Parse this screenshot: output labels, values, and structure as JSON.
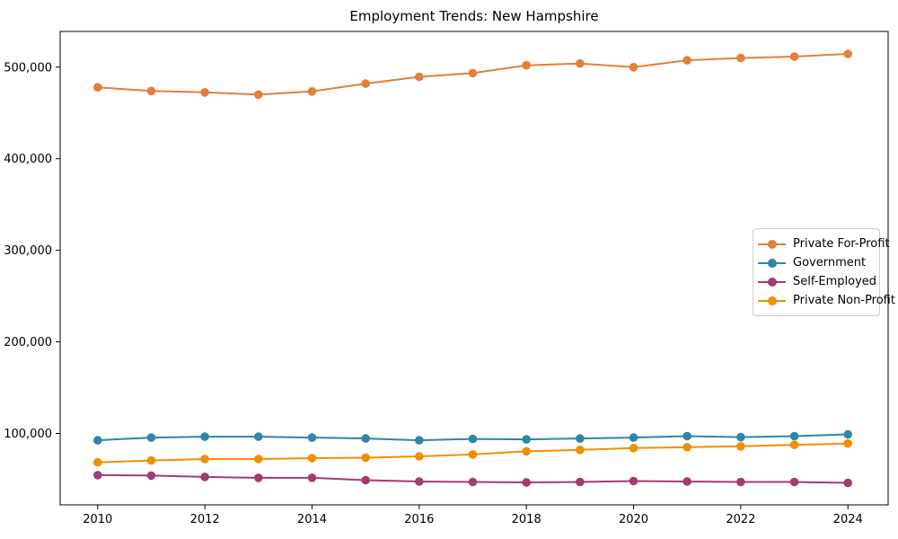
{
  "figure": {
    "title": "Employment Trends: New Hampshire"
  },
  "chart_data": {
    "type": "line",
    "title": "Employment Trends: New Hampshire",
    "xlabel": "",
    "ylabel": "",
    "x": [
      2010,
      2011,
      2012,
      2013,
      2014,
      2015,
      2016,
      2017,
      2018,
      2019,
      2020,
      2021,
      2022,
      2023,
      2024
    ],
    "series": [
      {
        "name": "Private For-Profit",
        "color": "#E67E3B",
        "values": [
          478000,
          474000,
          472500,
          470000,
          473500,
          482000,
          489500,
          493500,
          502000,
          504000,
          500000,
          507500,
          510000,
          511500,
          514500
        ]
      },
      {
        "name": "Government",
        "color": "#2E86AB",
        "values": [
          92500,
          95500,
          96500,
          96500,
          95500,
          94500,
          92500,
          94000,
          93500,
          94500,
          95500,
          97000,
          96000,
          97000,
          99000
        ]
      },
      {
        "name": "Self-Employed",
        "color": "#A23B72",
        "values": [
          54500,
          54000,
          52500,
          51500,
          51500,
          49000,
          47500,
          47000,
          46500,
          47000,
          48000,
          47500,
          47000,
          47000,
          46000
        ]
      },
      {
        "name": "Private Non-Profit",
        "color": "#F18F01",
        "values": [
          68500,
          70500,
          72000,
          72000,
          73000,
          73500,
          75000,
          77000,
          80500,
          82000,
          84000,
          85000,
          86000,
          87500,
          89000
        ]
      }
    ],
    "xticks": [
      2010,
      2012,
      2014,
      2016,
      2018,
      2020,
      2022,
      2024
    ],
    "yticks": [
      100000,
      200000,
      300000,
      400000,
      500000
    ],
    "xlim": [
      2009.3,
      2024.75
    ],
    "ylim": [
      22000,
      539000
    ],
    "grid": false,
    "legend_position": "center right",
    "y_tick_format": "comma",
    "marker": "circle"
  }
}
